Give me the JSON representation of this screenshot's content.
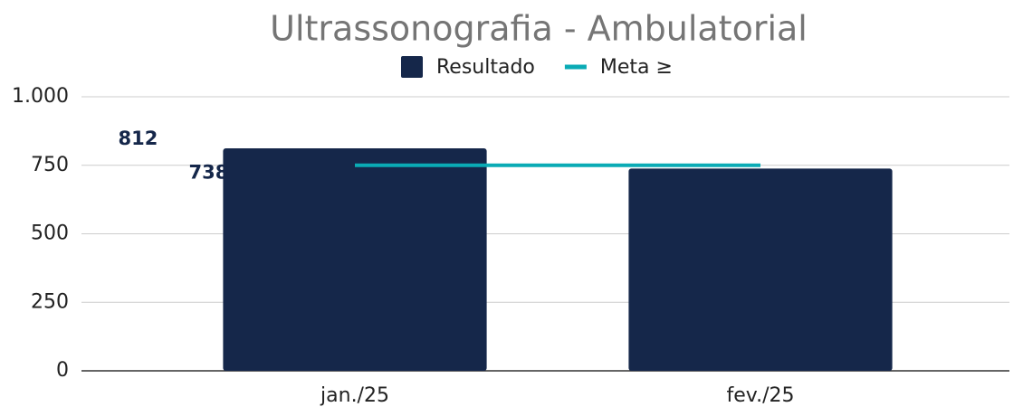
{
  "chart_data": {
    "type": "bar",
    "title": "Ultrassonografia - Ambulatorial",
    "categories": [
      "jan./25",
      "fev./25"
    ],
    "series": [
      {
        "name": "Resultado",
        "type": "bar",
        "color": "#15274a",
        "values": [
          812,
          738
        ]
      },
      {
        "name": "Meta ≥",
        "type": "line",
        "color": "#0aabb5",
        "values": [
          750,
          750
        ]
      }
    ],
    "ylim": [
      0,
      1000
    ],
    "yticks": [
      0,
      250,
      500,
      750,
      {
        "value": 1000,
        "label": "1.000"
      }
    ],
    "grid": true,
    "legend": "top"
  }
}
